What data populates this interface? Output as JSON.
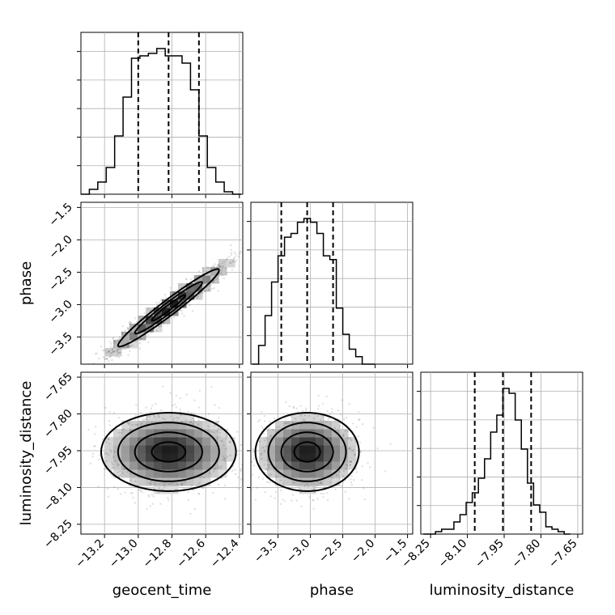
{
  "chart_data": {
    "type": "corner",
    "parameters": [
      "geocent_time",
      "phase",
      "luminosity_distance"
    ],
    "axes": {
      "geocent_time": {
        "label": "geocent_time",
        "range": [
          -13.34,
          -12.38
        ],
        "ticks": [
          -13.2,
          -13.0,
          -12.8,
          -12.6,
          -12.4
        ],
        "tick_labels": [
          "−13.2",
          "−13.0",
          "−12.8",
          "−12.6",
          "−12.4"
        ]
      },
      "phase": {
        "label": "phase",
        "range": [
          -3.92,
          -1.42
        ],
        "ticks": [
          -3.5,
          -3.0,
          -2.5,
          -2.0,
          -1.5
        ],
        "tick_labels": [
          "−3.5",
          "−3.0",
          "−2.5",
          "−2.0",
          "−1.5"
        ]
      },
      "luminosity_distance": {
        "label": "luminosity_distance",
        "range": [
          -8.29,
          -7.63
        ],
        "ticks": [
          -8.25,
          -8.1,
          -7.95,
          -7.8,
          -7.65
        ],
        "tick_labels": [
          "−8.25",
          "−8.10",
          "−7.95",
          "−7.80",
          "−7.65"
        ]
      }
    },
    "grid": true,
    "histograms": {
      "geocent_time": {
        "edges": [
          -13.34,
          -13.29,
          -13.24,
          -13.19,
          -13.14,
          -13.09,
          -13.04,
          -12.99,
          -12.94,
          -12.89,
          -12.84,
          -12.79,
          -12.74,
          -12.69,
          -12.64,
          -12.59,
          -12.54,
          -12.49,
          -12.44,
          -12.39
        ],
        "counts": [
          0,
          2,
          5,
          11,
          24,
          40,
          56,
          57,
          58,
          60,
          57,
          57,
          54,
          43,
          24,
          11,
          5,
          1,
          0
        ],
        "quantiles": [
          -13.0,
          -12.82,
          -12.64
        ]
      },
      "phase": {
        "edges": [
          -3.9,
          -3.8,
          -3.7,
          -3.6,
          -3.5,
          -3.4,
          -3.3,
          -3.2,
          -3.1,
          -3.0,
          -2.9,
          -2.8,
          -2.7,
          -2.6,
          -2.5,
          -2.4,
          -2.3,
          -2.2,
          -2.1,
          -2.0
        ],
        "counts": [
          0,
          5,
          13,
          22,
          29,
          34,
          35,
          38,
          39,
          38,
          35,
          29,
          28,
          15,
          8,
          4,
          2,
          0,
          0
        ],
        "quantiles": [
          -3.45,
          -3.05,
          -2.65
        ]
      },
      "luminosity_distance": {
        "edges": [
          -8.28,
          -8.255,
          -8.23,
          -8.205,
          -8.18,
          -8.155,
          -8.13,
          -8.105,
          -8.08,
          -8.055,
          -8.03,
          -8.005,
          -7.98,
          -7.955,
          -7.93,
          -7.905,
          -7.88,
          -7.855,
          -7.83,
          -7.805,
          -7.78,
          -7.755,
          -7.73,
          -7.705,
          -7.68
        ],
        "counts": [
          0,
          0,
          1,
          2,
          2,
          5,
          8,
          13,
          17,
          23,
          31,
          42,
          49,
          60,
          58,
          47,
          35,
          21,
          12,
          9,
          3,
          2,
          1,
          0
        ],
        "quantiles": [
          -8.07,
          -7.955,
          -7.84
        ]
      }
    },
    "pairs": [
      {
        "x": "geocent_time",
        "y": "phase",
        "center": [
          -12.82,
          -3.05
        ],
        "spread": [
          0.2,
          0.4
        ],
        "correlation": 0.97,
        "contour_levels": [
          0.5,
          1.0,
          1.5
        ]
      },
      {
        "x": "geocent_time",
        "y": "luminosity_distance",
        "center": [
          -12.82,
          -7.955
        ],
        "spread": [
          0.2,
          0.08
        ],
        "correlation": 0.0,
        "contour_levels": [
          0.5,
          1.0,
          1.5,
          2.0
        ]
      },
      {
        "x": "phase",
        "y": "luminosity_distance",
        "center": [
          -3.05,
          -7.955
        ],
        "spread": [
          0.4,
          0.08
        ],
        "correlation": 0.0,
        "contour_levels": [
          0.5,
          1.0,
          1.5,
          2.0
        ]
      }
    ]
  }
}
